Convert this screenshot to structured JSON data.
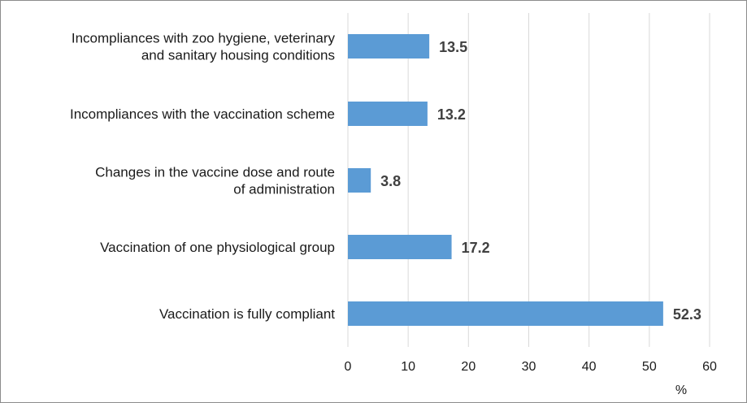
{
  "chart_data": {
    "type": "bar",
    "orientation": "horizontal",
    "categories": [
      [
        "Incompliances with zoo hygiene, veterinary",
        "and sanitary housing conditions"
      ],
      [
        "Incompliances with the vaccination scheme"
      ],
      [
        "Changes in the vaccine dose and route",
        "of administration"
      ],
      [
        "Vaccination of one physiological group"
      ],
      [
        "Vaccination is fully compliant"
      ]
    ],
    "values": [
      13.5,
      13.2,
      3.8,
      17.2,
      52.3
    ],
    "value_labels": [
      "13.5",
      "13.2",
      "3.8",
      "17.2",
      "52.3"
    ],
    "xlim": [
      0,
      60
    ],
    "xticks": [
      "0",
      "10",
      "20",
      "30",
      "40",
      "50",
      "60"
    ],
    "xunit": "%",
    "grid": "vertical",
    "bar_color": "#5b9bd5",
    "title": "",
    "xlabel": "",
    "ylabel": ""
  }
}
